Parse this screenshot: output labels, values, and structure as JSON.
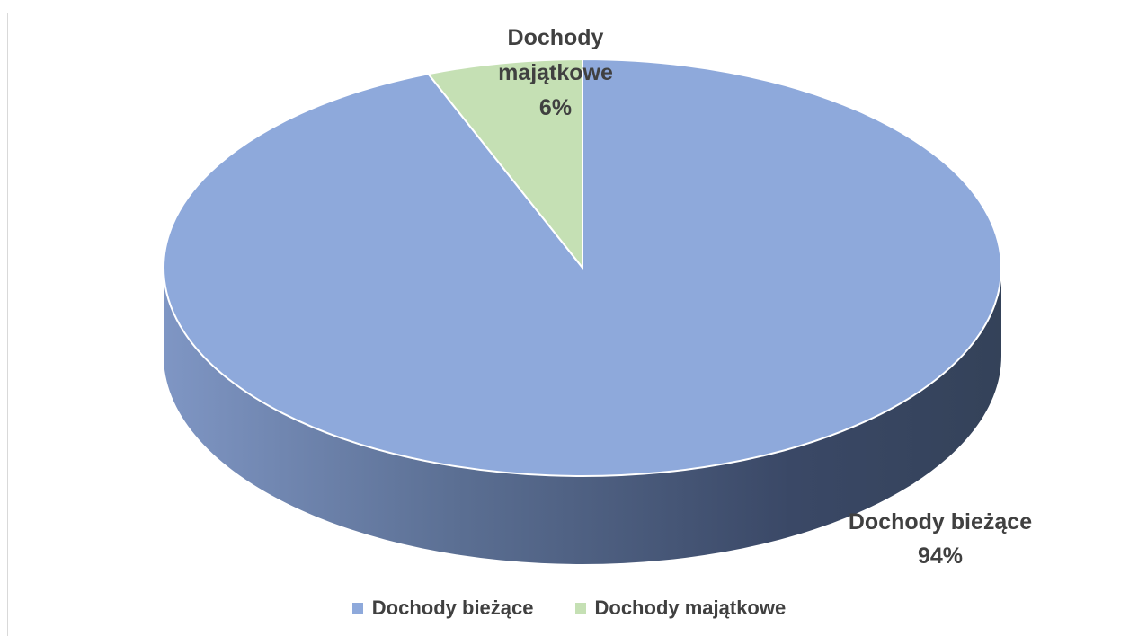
{
  "chart_data": {
    "type": "pie",
    "style": "3d",
    "categories": [
      "Dochody bieżące",
      "Dochody majątkowe"
    ],
    "values": [
      94,
      6
    ],
    "unit": "%",
    "colors": [
      "#8EA9DB",
      "#C5E0B4"
    ],
    "data_labels": [
      {
        "name": "Dochody bieżące",
        "value": "94%"
      },
      {
        "name": "Dochody majątkowe",
        "value": "6%"
      }
    ],
    "legend_position": "bottom"
  },
  "legend": {
    "items": [
      {
        "label": "Dochody bieżące",
        "color": "#8EA9DB"
      },
      {
        "label": "Dochody majątkowe",
        "color": "#C5E0B4"
      }
    ]
  }
}
